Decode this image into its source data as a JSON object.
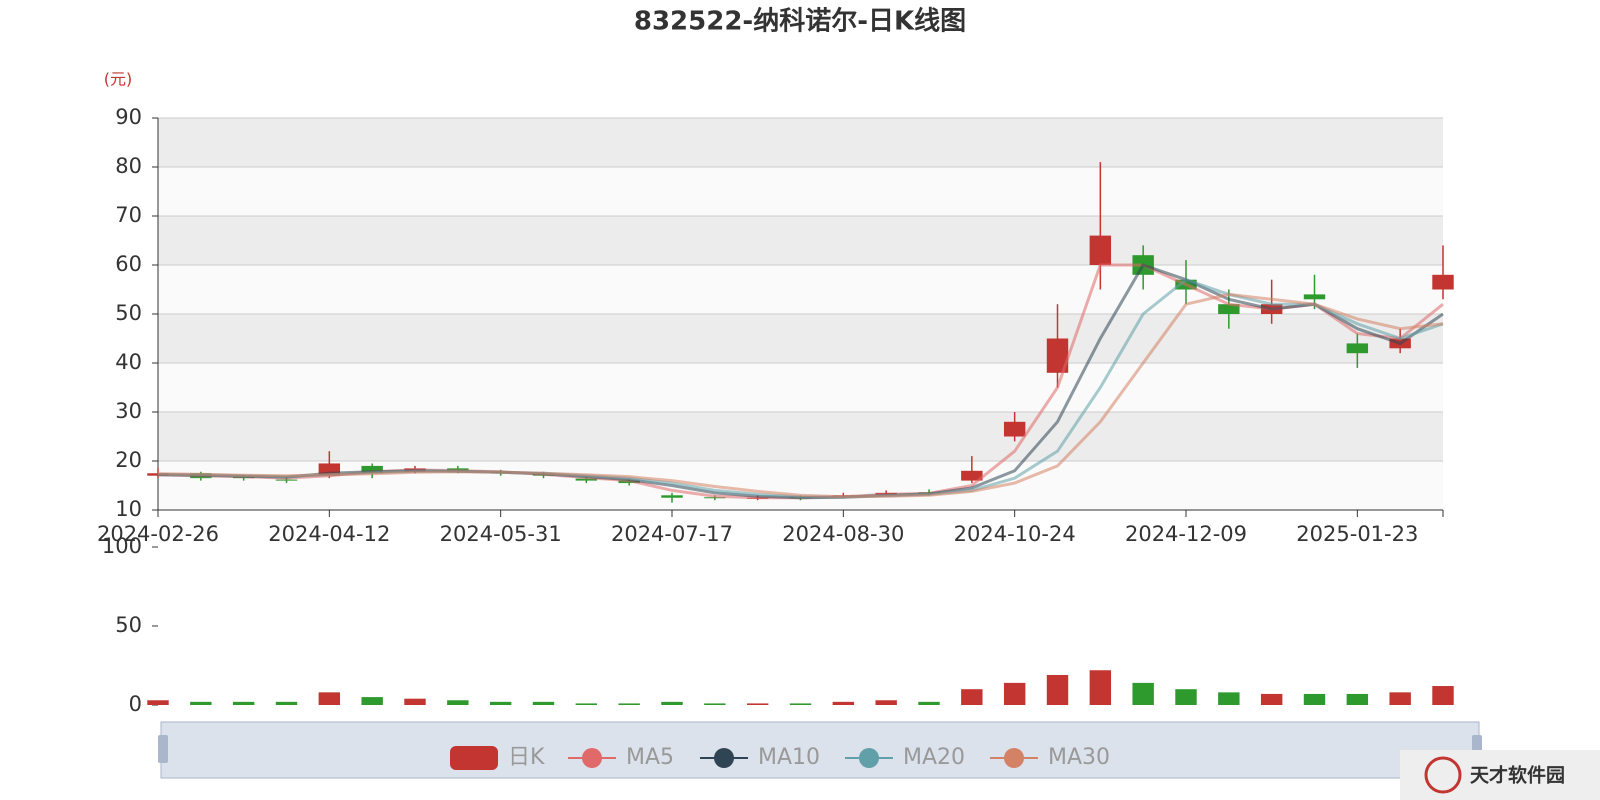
{
  "chart_data": [
    {
      "type": "candlestick",
      "title": "832522-纳科诺尔-日K线图",
      "y_label": "(元)",
      "candle_name": "日K",
      "color_up": "#c23531",
      "color_down": "#2e9a2e",
      "grid": true,
      "legend": "bottom",
      "categories": [
        "2024-02-26",
        null,
        null,
        null,
        "2024-04-12",
        null,
        null,
        null,
        "2024-05-31",
        null,
        null,
        null,
        "2024-07-17",
        null,
        null,
        null,
        "2024-08-30",
        null,
        null,
        null,
        "2024-10-24",
        null,
        null,
        null,
        "2024-12-09",
        null,
        null,
        null,
        "2025-01-23",
        null,
        null
      ],
      "open": [
        17,
        17.5,
        16.8,
        16.2,
        17,
        19,
        17.8,
        18.5,
        17.8,
        17.4,
        16.4,
        16,
        13,
        12.6,
        12.3,
        12.6,
        12.8,
        13.2,
        13.6,
        16,
        25,
        38,
        60,
        62,
        57,
        52,
        50,
        54,
        44,
        43,
        55
      ],
      "close": [
        17.5,
        16.5,
        16.5,
        16,
        19.5,
        17.5,
        18.5,
        18,
        17.5,
        17,
        16,
        15.5,
        12.5,
        12.5,
        12.5,
        12.5,
        13,
        13.5,
        13.5,
        18,
        28,
        45,
        66,
        58,
        55,
        50,
        52,
        53,
        42,
        45,
        58
      ],
      "low": [
        16.5,
        16,
        16,
        15.5,
        16.5,
        16.5,
        17.5,
        17.5,
        17,
        16.5,
        15.5,
        15,
        11.5,
        12,
        12,
        12,
        12.5,
        13,
        13,
        15.5,
        24,
        35,
        55,
        55,
        52,
        47,
        48,
        51,
        39,
        42,
        53
      ],
      "high": [
        18.5,
        17.8,
        17.2,
        16.8,
        22,
        19.5,
        19,
        19,
        18.2,
        17.8,
        16.8,
        16.2,
        13.5,
        13,
        13,
        13,
        13.5,
        14,
        14.2,
        21,
        30,
        52,
        81,
        64,
        61,
        55,
        57,
        58,
        46,
        47,
        64
      ],
      "ylim": [
        10,
        90
      ],
      "yticks": [
        10,
        20,
        30,
        40,
        50,
        60,
        70,
        80,
        90
      ],
      "series": [
        {
          "name": "MA5",
          "color": "#e06a6a",
          "values": [
            17.2,
            17,
            16.8,
            16.5,
            17,
            17.8,
            18.2,
            18,
            17.8,
            17.3,
            16.6,
            16,
            14,
            12.8,
            12.5,
            12.5,
            12.7,
            13.2,
            13.4,
            15,
            22,
            35,
            60,
            60,
            56,
            52,
            51,
            52,
            46,
            45,
            52
          ]
        },
        {
          "name": "MA10",
          "color": "#2f4554",
          "values": [
            17.2,
            17.1,
            16.9,
            16.7,
            17.5,
            17.8,
            18,
            17.9,
            17.7,
            17.4,
            16.8,
            16.2,
            15,
            13.5,
            12.8,
            12.5,
            12.6,
            13,
            13.3,
            14.5,
            18,
            28,
            45,
            60,
            57,
            53,
            51,
            52,
            47,
            44,
            50
          ]
        },
        {
          "name": "MA20",
          "color": "#61a0a8",
          "values": [
            17.3,
            17.2,
            17,
            16.8,
            17.2,
            17.6,
            17.9,
            17.9,
            17.7,
            17.5,
            17,
            16.5,
            15.5,
            14,
            13.2,
            12.7,
            12.6,
            12.9,
            13.2,
            14,
            16.5,
            22,
            35,
            50,
            57,
            54,
            52,
            52,
            48,
            45,
            48
          ]
        },
        {
          "name": "MA30",
          "color": "#d48265",
          "values": [
            17.4,
            17.3,
            17.1,
            17,
            17.2,
            17.4,
            17.7,
            17.8,
            17.7,
            17.5,
            17.2,
            16.8,
            16,
            14.8,
            13.8,
            13,
            12.7,
            12.8,
            13,
            13.8,
            15.5,
            19,
            28,
            40,
            52,
            54,
            53,
            52,
            49,
            47,
            48
          ]
        }
      ]
    },
    {
      "type": "bar",
      "values": [
        3,
        2,
        2,
        2,
        8,
        5,
        4,
        3,
        2,
        2,
        1,
        1,
        2,
        1,
        1,
        1,
        2,
        3,
        2,
        10,
        14,
        19,
        22,
        14,
        10,
        8,
        7,
        7,
        7,
        8,
        12
      ],
      "ylim": [
        0,
        100
      ],
      "yticks": [
        0,
        50,
        100
      ]
    }
  ],
  "watermark": "天才软件园"
}
